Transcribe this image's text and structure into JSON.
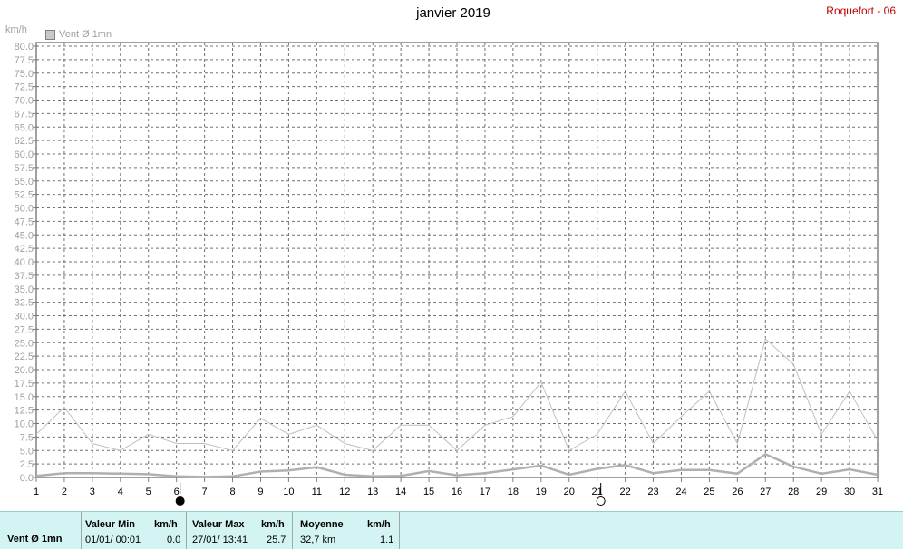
{
  "header": {
    "title": "janvier 2019",
    "station": "Roquefort - 06"
  },
  "chart_data": {
    "type": "line",
    "title": "janvier 2019",
    "ylabel": "km/h",
    "ylim": [
      0,
      80
    ],
    "yticks": [
      "0.0",
      "2.5",
      "5.0",
      "7.5",
      "10.0",
      "12.5",
      "15.0",
      "17.5",
      "20.0",
      "22.5",
      "25.0",
      "27.5",
      "30.0",
      "32.5",
      "35.0",
      "37.5",
      "40.0",
      "42.5",
      "45.0",
      "47.5",
      "50.0",
      "52.5",
      "55.0",
      "57.5",
      "60.0",
      "62.5",
      "65.0",
      "67.5",
      "70.0",
      "72.5",
      "75.0",
      "77.5",
      "80.0"
    ],
    "x": [
      1,
      2,
      3,
      4,
      5,
      6,
      7,
      8,
      9,
      10,
      11,
      12,
      13,
      14,
      15,
      16,
      17,
      18,
      19,
      20,
      21,
      22,
      23,
      24,
      25,
      26,
      27,
      28,
      29,
      30,
      31
    ],
    "legend": [
      "Vent Ø 1mn"
    ],
    "series": [
      {
        "name": "Vent Ø 1mn",
        "role": "max",
        "color": "#c0c0c0",
        "values": [
          8.0,
          13.0,
          6.3,
          5.0,
          8.0,
          6.3,
          6.3,
          5.0,
          11.0,
          8.0,
          9.7,
          6.3,
          5.0,
          9.7,
          9.7,
          5.0,
          9.7,
          11.3,
          17.7,
          5.0,
          8.0,
          16.0,
          6.3,
          11.3,
          16.0,
          6.3,
          25.7,
          21.0,
          8.0,
          16.0,
          6.8
        ]
      },
      {
        "name": "Vent Ø 1mn",
        "role": "avg",
        "color": "#b0b0b0",
        "values": [
          0.3,
          0.8,
          0.8,
          0.7,
          0.6,
          0.2,
          0.1,
          0.2,
          1.1,
          1.3,
          1.9,
          0.5,
          0.2,
          0.3,
          1.2,
          0.4,
          0.8,
          1.5,
          2.2,
          0.5,
          1.6,
          2.3,
          0.8,
          1.4,
          1.4,
          0.7,
          4.3,
          2.0,
          0.7,
          1.5,
          0.5
        ]
      }
    ],
    "moon_phases": [
      {
        "day": 6,
        "phase": "new"
      },
      {
        "day": 21,
        "phase": "full"
      }
    ],
    "grid": true
  },
  "stats": {
    "label": "Vent Ø 1mn",
    "min": {
      "header": "Valeur Min",
      "unit": "km/h",
      "date": "01/01/  00:01",
      "value": "0.0"
    },
    "max": {
      "header": "Valeur Max",
      "unit": "km/h",
      "date": "27/01/  13:41",
      "value": "25.7"
    },
    "mean": {
      "header": "Moyenne",
      "unit": "km/h",
      "extra": "32,7 km",
      "value": "1.1"
    }
  }
}
